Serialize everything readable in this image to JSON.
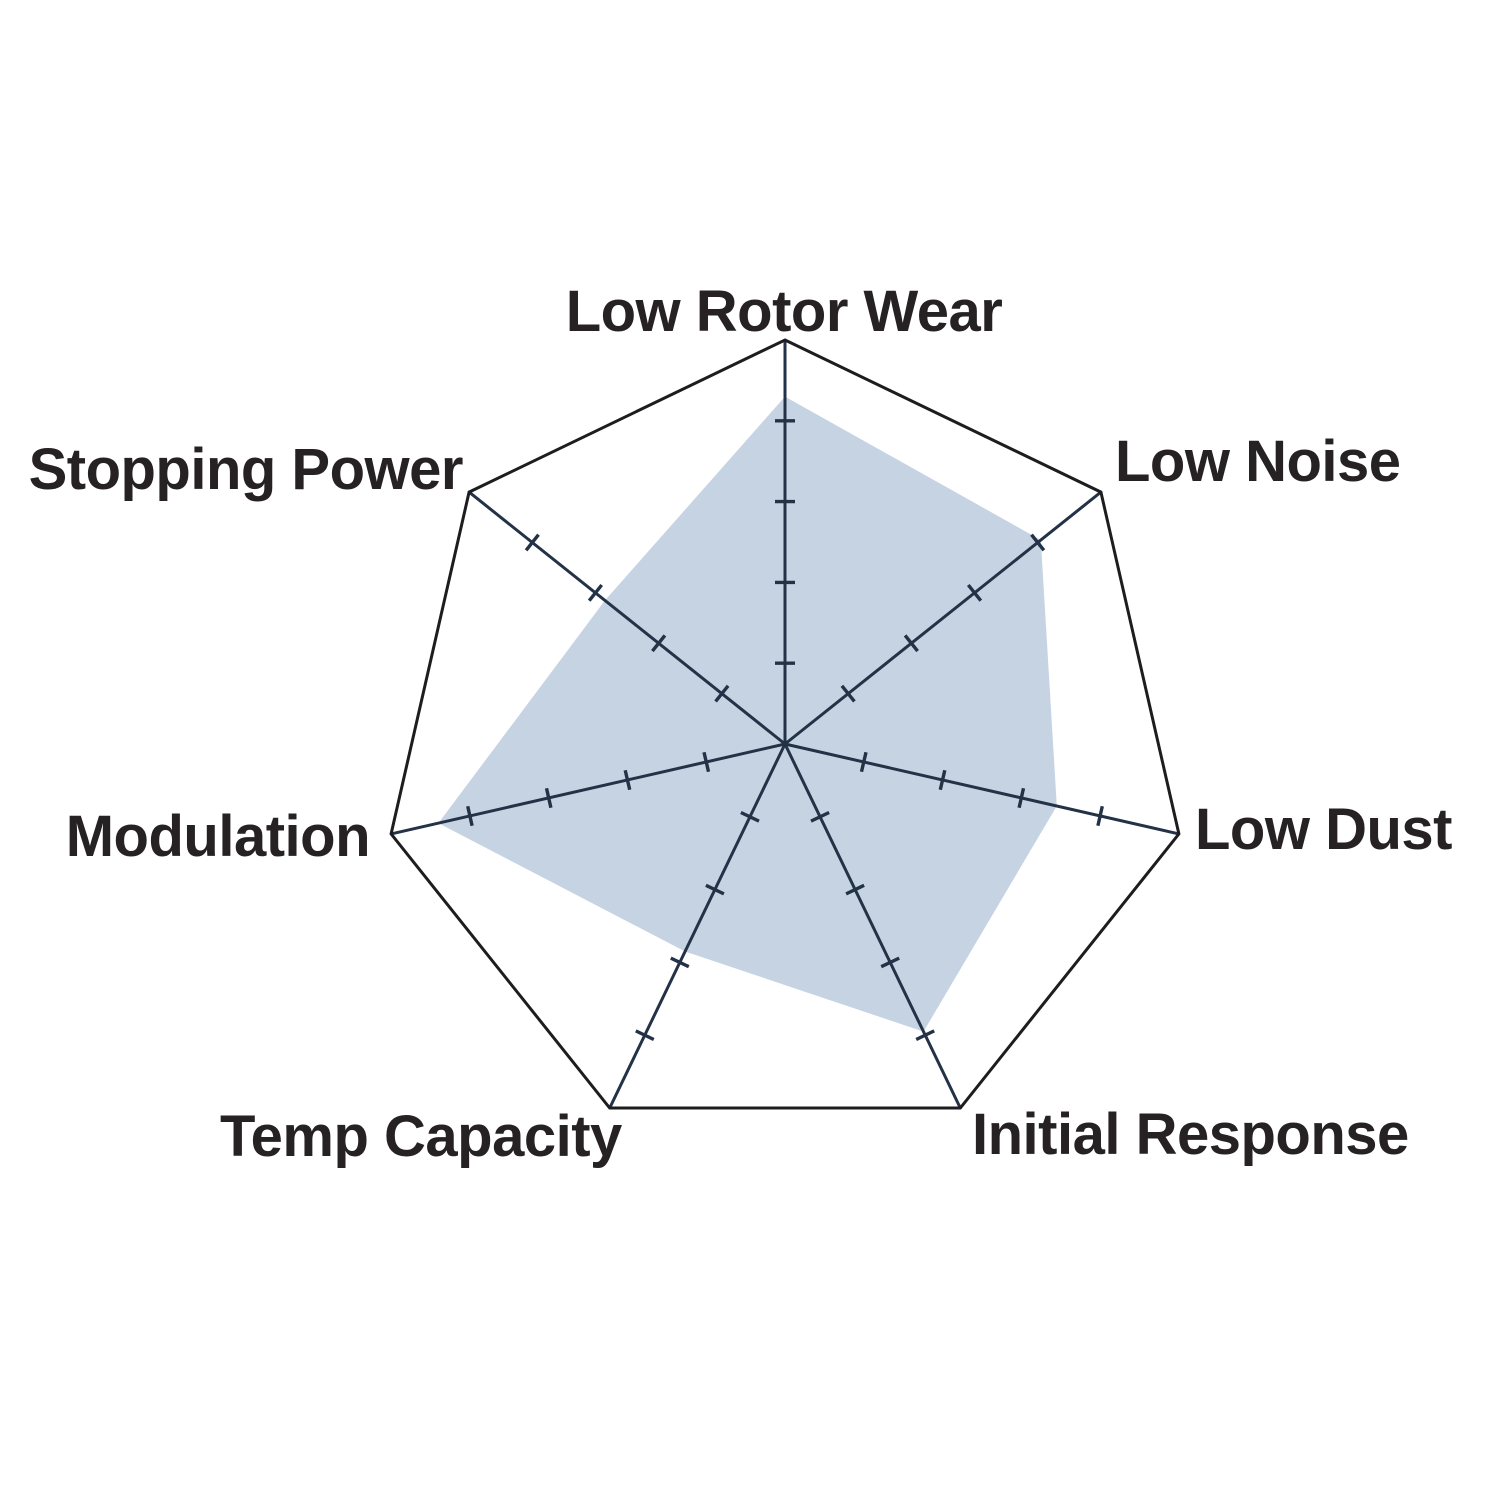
{
  "page": {
    "background_color": "#ffffff"
  },
  "chart_data": {
    "type": "radar",
    "title": "",
    "legend": "none",
    "categories": [
      "Low Rotor Wear",
      "Low Noise",
      "Low Dust",
      "Initial Response",
      "Temp Capacity",
      "Modulation",
      "Stopping Power"
    ],
    "values": [
      4.3,
      4.05,
      3.45,
      3.95,
      2.85,
      4.4,
      2.85
    ],
    "scale": {
      "min": 0,
      "max": 5,
      "tick_step": 1,
      "ticks_marked": [
        1,
        2,
        3,
        4
      ]
    },
    "layout_hints": {
      "grid_shape": "heptagon-outline-only",
      "rings": false,
      "spokes": true,
      "start_axis": "top",
      "direction": "clockwise"
    },
    "colors": {
      "fill": "#C6D3E3",
      "spokes": "#233247",
      "outline": "#1D1D1F",
      "labels": "#262223"
    }
  }
}
